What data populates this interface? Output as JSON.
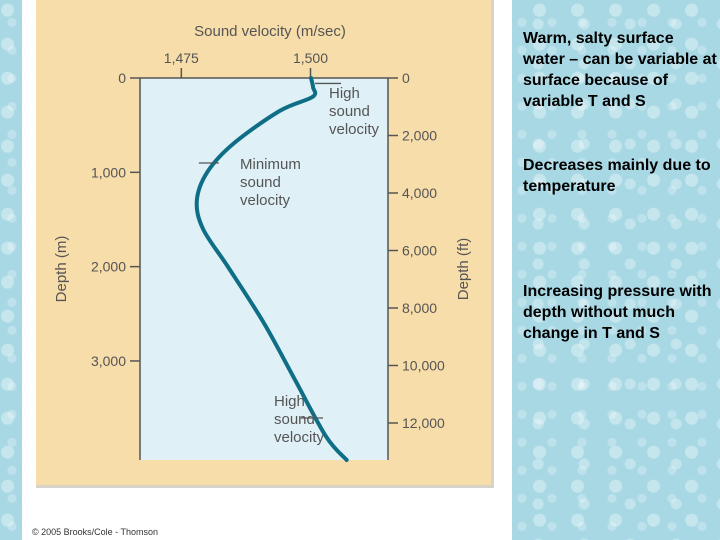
{
  "notes": [
    "Warm, salty surface water – can be variable at surface because of variable T and S",
    "Decreases mainly due to temperature",
    "Increasing pressure with depth without much change in T and S"
  ],
  "credit": "© 2005 Brooks/Cole - Thomson",
  "colors": {
    "figure_bg": "#f7ddaa",
    "plot_bg": "#dff0f7",
    "curve": "#0e6e86",
    "text": "#555555"
  },
  "chart_data": {
    "type": "line",
    "title": "Sound velocity (m/sec)",
    "xlabel": "Sound velocity (m/sec)",
    "ylabel": "Depth (m)",
    "ylabel_right": "Depth (ft)",
    "x_ticks": [
      "1,475",
      "1,500"
    ],
    "x_tick_values": [
      1475,
      1500
    ],
    "xlim": [
      1467,
      1515
    ],
    "y_ticks": [
      "0",
      "1,000",
      "2,000",
      "3,000"
    ],
    "y_tick_values": [
      0,
      1000,
      2000,
      3000
    ],
    "ylim": [
      0,
      4050
    ],
    "y_right_ticks": [
      "0",
      "2,000",
      "4,000",
      "6,000",
      "8,000",
      "10,000",
      "12,000"
    ],
    "y_right_tick_values": [
      0,
      2000,
      4000,
      6000,
      8000,
      10000,
      12000
    ],
    "series": [
      {
        "values": [
          {
            "x": 1500.1,
            "y": 0
          },
          {
            "x": 1500.5,
            "y": 100
          },
          {
            "x": 1500.4,
            "y": 200
          },
          {
            "x": 1494,
            "y": 350
          },
          {
            "x": 1485,
            "y": 700
          },
          {
            "x": 1480,
            "y": 1000
          },
          {
            "x": 1478,
            "y": 1300
          },
          {
            "x": 1479.2,
            "y": 1600
          },
          {
            "x": 1484,
            "y": 2000
          },
          {
            "x": 1491,
            "y": 2600
          },
          {
            "x": 1497,
            "y": 3200
          },
          {
            "x": 1503,
            "y": 3800
          },
          {
            "x": 1507,
            "y": 4050
          }
        ]
      }
    ],
    "annotations": [
      {
        "text": [
          "High",
          "sound",
          "velocity"
        ],
        "x": 1500.5,
        "y": 100
      },
      {
        "text": [
          "Minimum",
          "sound",
          "velocity"
        ],
        "x": 1478,
        "y": 900
      },
      {
        "text": [
          "High",
          "sound",
          "velocity"
        ],
        "x": 1503,
        "y": 3600
      }
    ],
    "grid": false
  }
}
